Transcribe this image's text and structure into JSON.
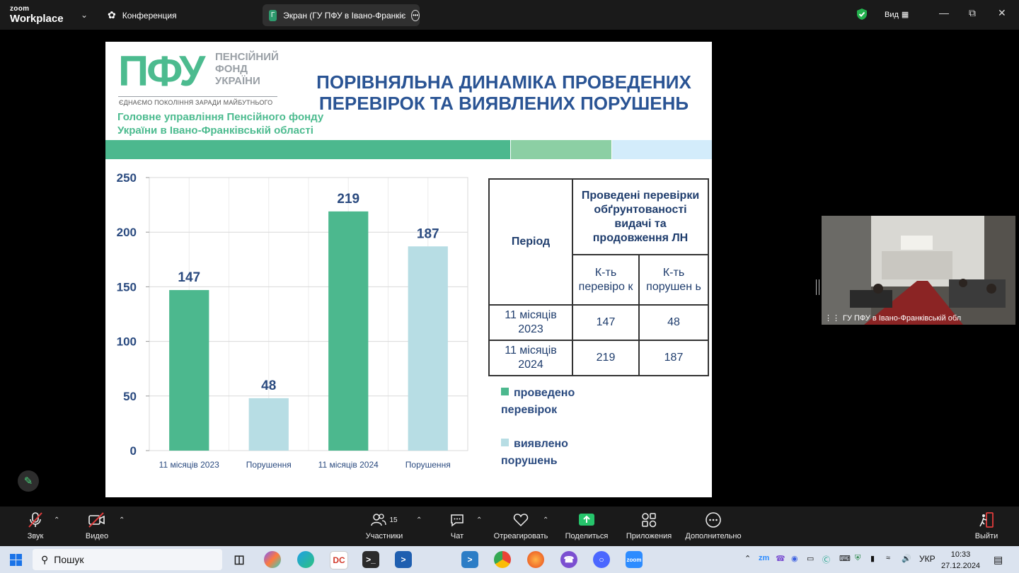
{
  "app": {
    "logo_top": "zoom",
    "logo_bottom": "Workplace",
    "meeting_label": "Конференция"
  },
  "share_pill": {
    "initial": "Г",
    "title": "Экран (ГУ ПФУ в Івано-Франкіє"
  },
  "view": {
    "label": "Вид"
  },
  "slide": {
    "pfu_abbr": "ПФУ",
    "pfu_name_lines": [
      "ПЕНСІЙНИЙ",
      "ФОНД",
      "УКРАЇНИ"
    ],
    "slogan": "ЄДНАЄМО ПОКОЛІННЯ ЗАРАДИ МАЙБУТНЬОГО",
    "dept_lines": [
      "Головне управління Пенсійного фонду",
      "України в Івано-Франківській області"
    ],
    "title_lines": [
      "ПОРІВНЯЛЬНА ДИНАМІКА ПРОВЕДЕНИХ",
      "ПЕРЕВІРОК ТА ВИЯВЛЕНИХ ПОРУШЕНЬ"
    ],
    "band_colors": [
      "#4cb88e",
      "#8ccfa4",
      "#d3ecfb"
    ],
    "table": {
      "period_header": "Період",
      "group_header": "Проведені перевірки обґрунтованості видачі та продовження ЛН",
      "col1_header": "К-ть перевіро к",
      "col2_header": "К-ть порушен ь",
      "rows": [
        {
          "period": "11 місяців 2023",
          "checks": "147",
          "violations": "48"
        },
        {
          "period": "11 місяців 2024",
          "checks": "219",
          "violations": "187"
        }
      ]
    },
    "legend": [
      {
        "lines": [
          "проведено",
          "перевірок"
        ],
        "color": "#4cb88e"
      },
      {
        "lines": [
          "виявлено",
          "порушень"
        ],
        "color": "#b7dde4"
      }
    ]
  },
  "chart_data": {
    "type": "bar",
    "categories": [
      "11 місяців 2023",
      "Порушення",
      "11 місяців 2024",
      "Порушення"
    ],
    "values": [
      147,
      48,
      219,
      187
    ],
    "colors": [
      "#4cb88e",
      "#b7dde4",
      "#4cb88e",
      "#b7dde4"
    ],
    "data_labels": [
      "147",
      "48",
      "219",
      "187"
    ],
    "yticks": [
      0,
      50,
      100,
      150,
      200,
      250
    ],
    "ylim": [
      0,
      250
    ],
    "grid": true,
    "legend_position": "right"
  },
  "participant": {
    "name": "ГУ ПФУ в Івано-Франківській обл"
  },
  "toolbar": {
    "audio": "Звук",
    "video": "Видео",
    "participants": "Участники",
    "participants_count": "15",
    "chat": "Чат",
    "react": "Отреагировать",
    "share": "Поделиться",
    "apps": "Приложения",
    "more": "Дополнительно",
    "leave": "Выйти"
  },
  "taskbar": {
    "search_placeholder": "Пошук",
    "lang": "УКР",
    "time": "10:33",
    "date": "27.12.2024"
  }
}
